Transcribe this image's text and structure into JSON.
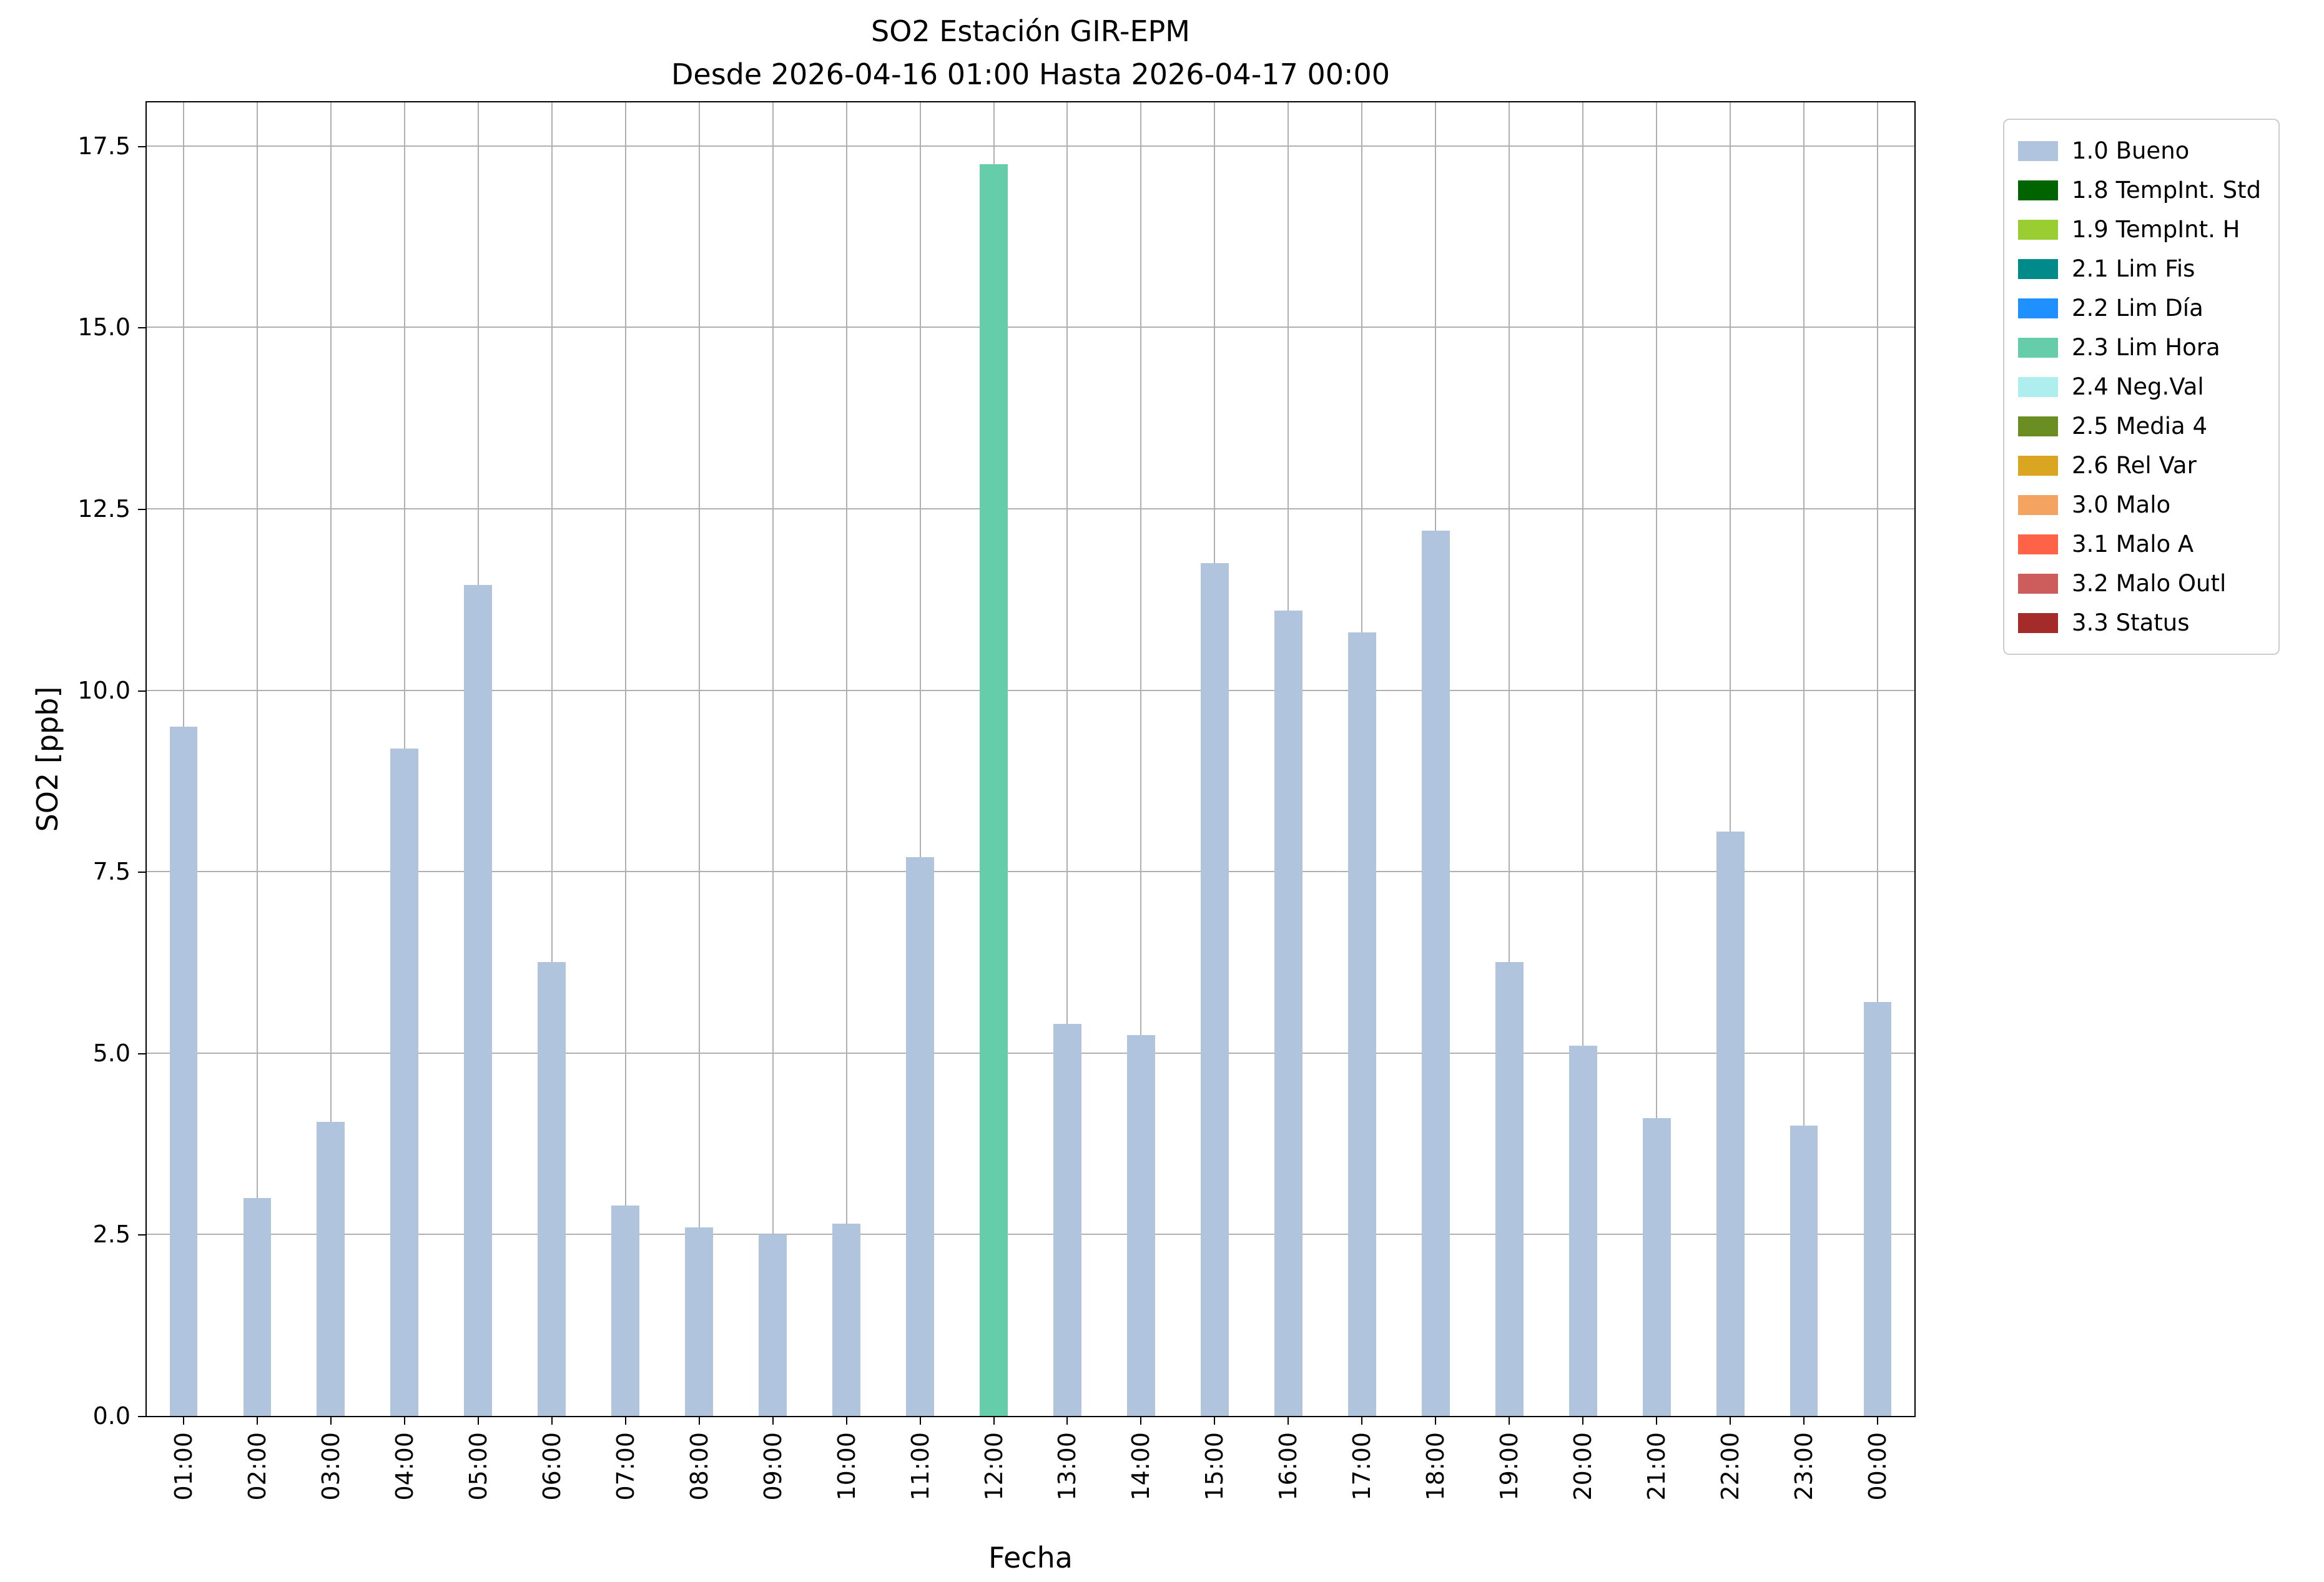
{
  "chart_data": {
    "type": "bar",
    "title": "SO2 Estación GIR-EPM",
    "subtitle": "Desde 2026-04-16 01:00 Hasta 2026-04-17 00:00",
    "xlabel": "Fecha",
    "ylabel": "SO2 [ppb]",
    "ylim": [
      0,
      18.1
    ],
    "yticks": [
      0.0,
      2.5,
      5.0,
      7.5,
      10.0,
      12.5,
      15.0,
      17.5
    ],
    "grid": true,
    "legend_position": "outside-top-right",
    "categories": [
      "01:00",
      "02:00",
      "03:00",
      "04:00",
      "05:00",
      "06:00",
      "07:00",
      "08:00",
      "09:00",
      "10:00",
      "11:00",
      "12:00",
      "13:00",
      "14:00",
      "15:00",
      "16:00",
      "17:00",
      "18:00",
      "19:00",
      "20:00",
      "21:00",
      "22:00",
      "23:00",
      "00:00"
    ],
    "values": [
      9.5,
      3.0,
      4.05,
      9.2,
      11.45,
      6.25,
      2.9,
      2.6,
      2.5,
      2.65,
      7.7,
      17.25,
      5.4,
      5.25,
      11.75,
      11.1,
      10.8,
      12.2,
      6.25,
      5.1,
      4.1,
      8.05,
      4.0,
      5.7
    ],
    "bar_status": [
      "1.0 Bueno",
      "1.0 Bueno",
      "1.0 Bueno",
      "1.0 Bueno",
      "1.0 Bueno",
      "1.0 Bueno",
      "1.0 Bueno",
      "1.0 Bueno",
      "1.0 Bueno",
      "1.0 Bueno",
      "1.0 Bueno",
      "2.3 Lim Hora",
      "1.0 Bueno",
      "1.0 Bueno",
      "1.0 Bueno",
      "1.0 Bueno",
      "1.0 Bueno",
      "1.0 Bueno",
      "1.0 Bueno",
      "1.0 Bueno",
      "1.0 Bueno",
      "1.0 Bueno",
      "1.0 Bueno",
      "1.0 Bueno"
    ],
    "legend": [
      {
        "label": "1.0 Bueno",
        "color": "#b0c4de"
      },
      {
        "label": "1.8 TempInt. Std",
        "color": "#006400"
      },
      {
        "label": "1.9 TempInt. H",
        "color": "#9acd32"
      },
      {
        "label": "2.1 Lim Fis",
        "color": "#008b8b"
      },
      {
        "label": "2.2 Lim Día",
        "color": "#1e90ff"
      },
      {
        "label": "2.3 Lim Hora",
        "color": "#66cdaa"
      },
      {
        "label": "2.4 Neg.Val",
        "color": "#afeeee"
      },
      {
        "label": "2.5 Media 4",
        "color": "#6b8e23"
      },
      {
        "label": "2.6 Rel Var",
        "color": "#daa520"
      },
      {
        "label": "3.0 Malo",
        "color": "#f4a460"
      },
      {
        "label": "3.1 Malo A",
        "color": "#ff6347"
      },
      {
        "label": "3.2 Malo Outl",
        "color": "#cd5c5c"
      },
      {
        "label": "3.3 Status",
        "color": "#a52a2a"
      }
    ],
    "grid_color": "#b0b0b0",
    "bar_width_fraction": 0.38
  }
}
